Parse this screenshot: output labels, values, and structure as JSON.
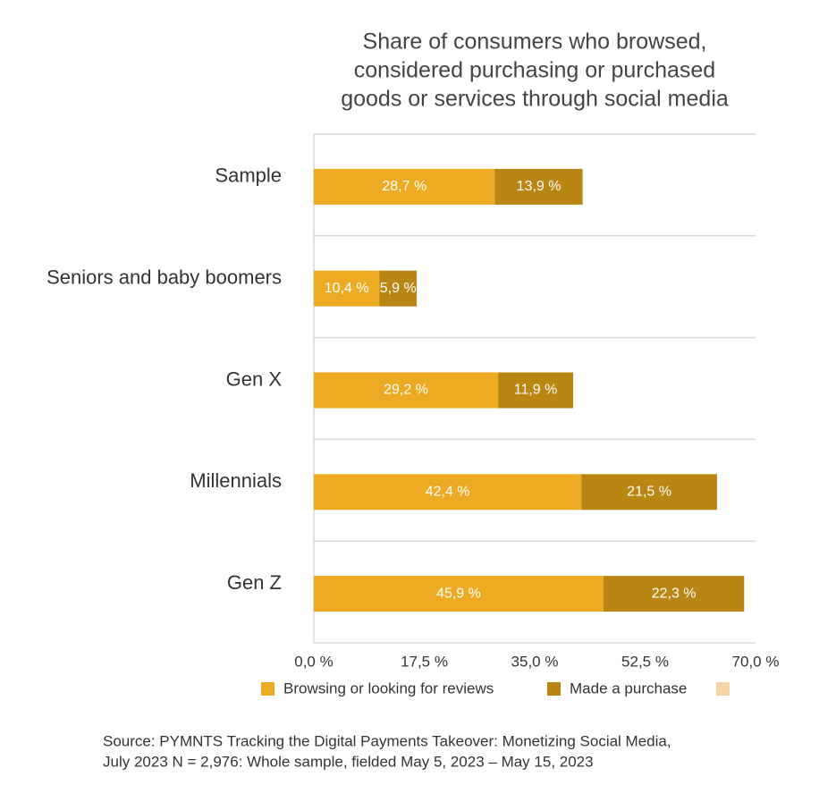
{
  "chart_data": {
    "type": "stacked_barh",
    "title": [
      "Share of consumers who browsed,",
      "considered purchasing or purchased",
      "goods or services through social media"
    ],
    "categories": [
      "Sample",
      "Seniors and baby boomers",
      "Gen X",
      "Millennials",
      "Gen Z"
    ],
    "series": [
      {
        "name": "Browsing or looking for reviews",
        "color": "#ecab23",
        "values": [
          28.7,
          10.4,
          29.2,
          42.4,
          45.9
        ],
        "value_labels": [
          "28,7 %",
          "10,4 %",
          "29,2 %",
          "42,4 %",
          "45,9 %"
        ]
      },
      {
        "name": "Made a purchase",
        "color": "#b98513",
        "values": [
          13.9,
          5.9,
          11.9,
          21.5,
          22.3
        ],
        "value_labels": [
          "13,9 %",
          "5,9 %",
          "11,9 %",
          "21,5 %",
          "22,3 %"
        ]
      }
    ],
    "xlim": [
      0,
      70
    ],
    "xticks": [
      {
        "value": 0,
        "label": "0,0 %"
      },
      {
        "value": 17.5,
        "label": "17,5 %"
      },
      {
        "value": 35,
        "label": "35,0 %"
      },
      {
        "value": 52.5,
        "label": "52,5 %"
      },
      {
        "value": 70,
        "label": "70,0 %"
      }
    ],
    "grid": true,
    "source": [
      "Source: PYMNTS Tracking the Digital Payments Takeover: Monetizing Social Media,",
      "July 2023 N = 2,976: Whole sample, fielded May 5, 2023 – May 15, 2023"
    ]
  }
}
